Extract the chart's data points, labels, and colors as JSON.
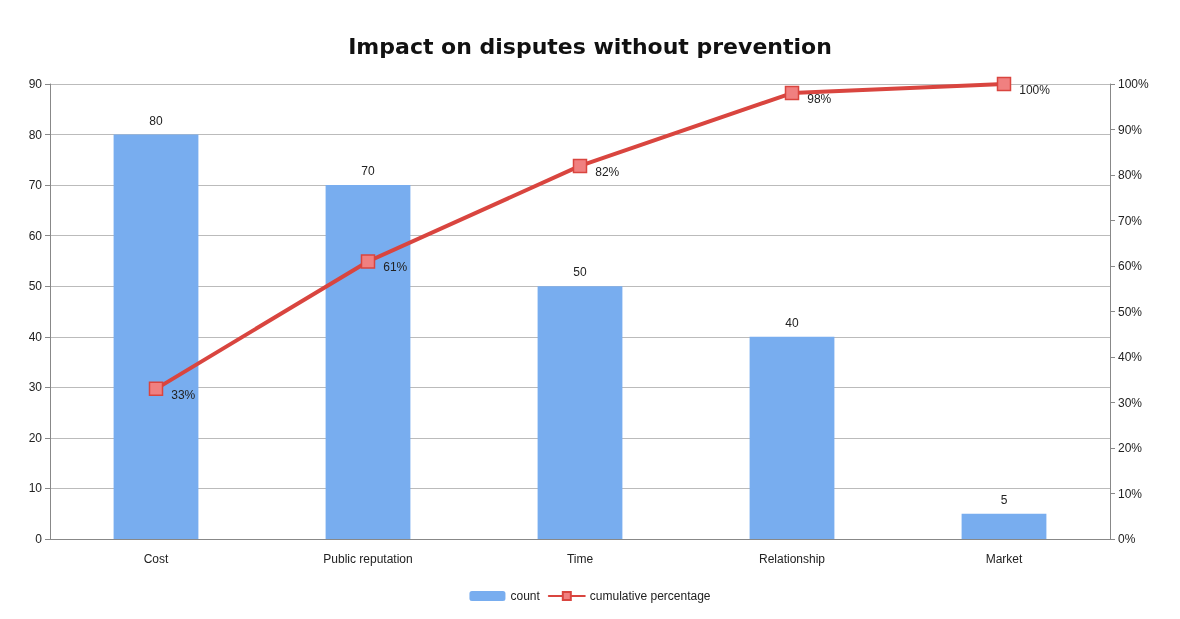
{
  "chart_data": {
    "type": "bar",
    "title": "Impact on disputes without prevention",
    "categories": [
      "Cost",
      "Public reputation",
      "Time",
      "Relationship",
      "Market"
    ],
    "series": [
      {
        "name": "count",
        "color": "#78adef",
        "values": [
          80,
          70,
          50,
          40,
          5
        ],
        "value_labels": [
          "80",
          "70",
          "50",
          "40",
          "5"
        ]
      },
      {
        "name": "cumulative percentage",
        "type": "line",
        "axis": "y2",
        "color": "#d9453f",
        "values": [
          33,
          61,
          82,
          98,
          100
        ],
        "value_labels": [
          "33%",
          "61%",
          "82%",
          "98%",
          "100%"
        ]
      }
    ],
    "ylim": [
      0,
      90
    ],
    "yticks": [
      0,
      10,
      20,
      30,
      40,
      50,
      60,
      70,
      80,
      90
    ],
    "y2lim": [
      0,
      100
    ],
    "y2ticks": [
      {
        "value": 0,
        "label": "0%"
      },
      {
        "value": 10,
        "label": "10%"
      },
      {
        "value": 20,
        "label": "20%"
      },
      {
        "value": 30,
        "label": "30%"
      },
      {
        "value": 40,
        "label": "40%"
      },
      {
        "value": 50,
        "label": "50%"
      },
      {
        "value": 60,
        "label": "60%"
      },
      {
        "value": 70,
        "label": "70%"
      },
      {
        "value": 80,
        "label": "80%"
      },
      {
        "value": 90,
        "label": "90%"
      },
      {
        "value": 100,
        "label": "100%"
      }
    ],
    "grid": "y",
    "legend": "bottom",
    "marker": "square",
    "line_style": "solid"
  }
}
